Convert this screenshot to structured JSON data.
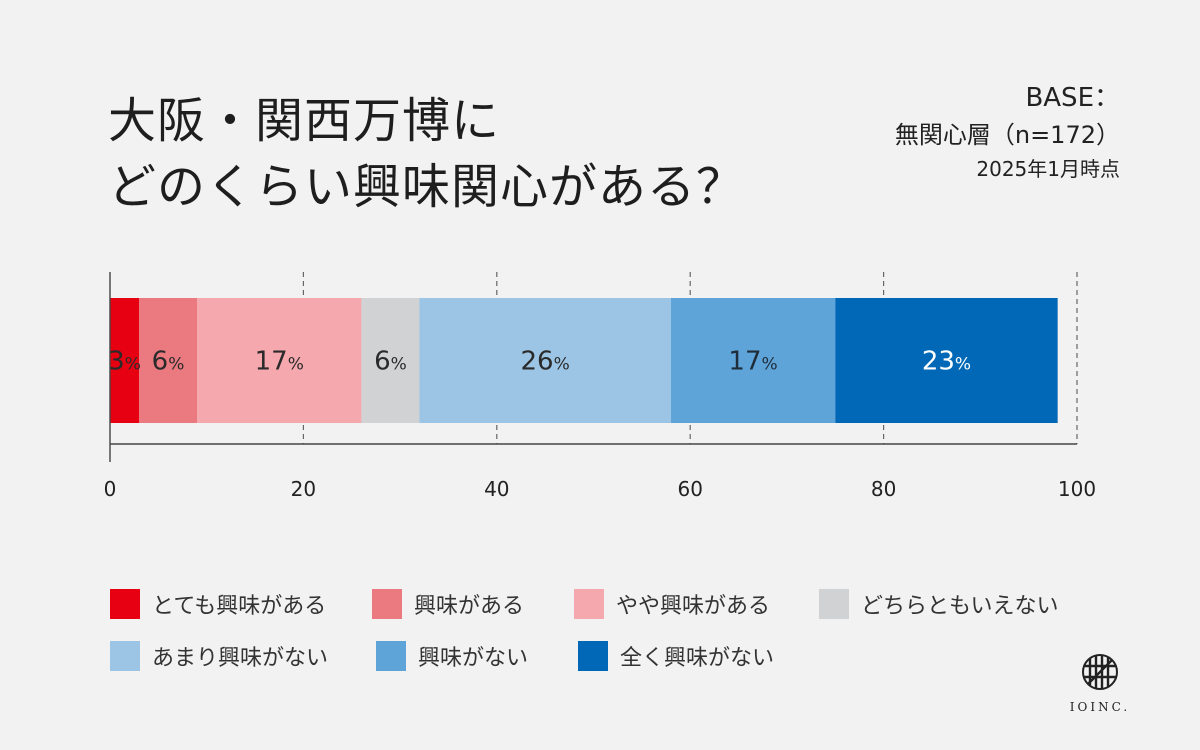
{
  "title": {
    "line1": "大阪・関西万博に",
    "line2": "どのくらい興味関心がある？"
  },
  "base": {
    "label": "BASE：",
    "segment": "無関心層（n=172）",
    "date": "2025年1月時点"
  },
  "chart_data": {
    "type": "bar",
    "orientation": "horizontal-stacked-100",
    "xlim": [
      0,
      100
    ],
    "xticks": [
      "0",
      "20",
      "40",
      "60",
      "80",
      "100"
    ],
    "grid": "vertical-dashed",
    "legend_placement": "bottom",
    "series": [
      {
        "name": "とても興味がある",
        "value": 3,
        "label": "3",
        "color": "#e60012",
        "text_color": "#2a2a2a"
      },
      {
        "name": "興味がある",
        "value": 6,
        "label": "6",
        "color": "#ea7a80",
        "text_color": "#2a2a2a"
      },
      {
        "name": "やや興味がある",
        "value": 17,
        "label": "17",
        "color": "#f5a8ad",
        "text_color": "#2a2a2a"
      },
      {
        "name": "どちらともいえない",
        "value": 6,
        "label": "6",
        "color": "#d0d2d4",
        "text_color": "#2a2a2a"
      },
      {
        "name": "あまり興味がない",
        "value": 26,
        "label": "26",
        "color": "#9cc5e5",
        "text_color": "#2a2a2a"
      },
      {
        "name": "興味がない",
        "value": 17,
        "label": "17",
        "color": "#5ea4d8",
        "text_color": "#1f2d3a"
      },
      {
        "name": "全く興味がない",
        "value": 23,
        "label": "23",
        "color": "#0068b7",
        "text_color": "#ffffff"
      }
    ],
    "value_suffix": "%"
  },
  "logo": {
    "text": "IOINC.",
    "icon": "hatched-circle-logo-icon"
  }
}
